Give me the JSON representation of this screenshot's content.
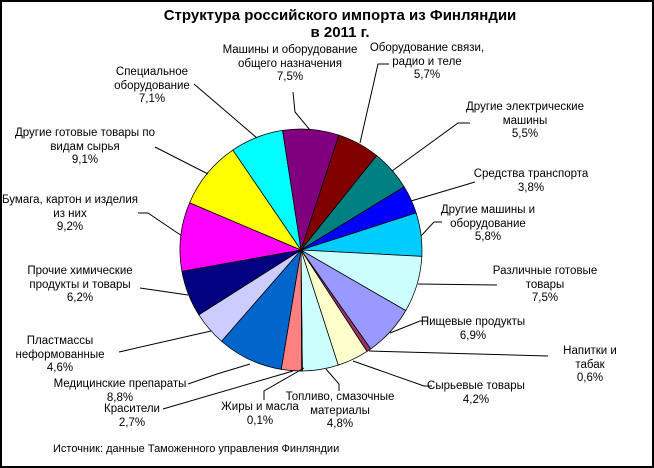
{
  "title": {
    "line1": "Структура российского импорта из Финляндии",
    "line2": "в 2011 г."
  },
  "source_note": "Источник: данные Таможенного управления Финляндии",
  "chart_data": {
    "type": "pie",
    "title": "Структура российского импорта из Финляндии в 2011 г.",
    "units": "%",
    "start_angle_deg": 120,
    "direction": "clockwise",
    "legend": "none",
    "label_format": "name + percent, comma decimal separator",
    "slices": [
      {
        "label": "Пищевые продукты",
        "value": 6.9,
        "color": "#9999FF"
      },
      {
        "label": "Напитки и табак",
        "value": 0.6,
        "color": "#993366"
      },
      {
        "label": "Сырьевые товары",
        "value": 4.2,
        "color": "#FFFFCC"
      },
      {
        "label": "Топливо, смазочные\nматериалы",
        "value": 4.8,
        "color": "#CCFFFF"
      },
      {
        "label": "Жиры и масла",
        "value": 0.1,
        "color": "#660066"
      },
      {
        "label": "Красители",
        "value": 2.7,
        "color": "#FF8080"
      },
      {
        "label": "Медицинские препараты",
        "value": 8.8,
        "color": "#0066CC"
      },
      {
        "label": "Пластмассы\nнеформованные",
        "value": 4.6,
        "color": "#CCCCFF"
      },
      {
        "label": "Прочие химические\nпродукты и товары",
        "value": 6.2,
        "color": "#000080"
      },
      {
        "label": "Бумага, картон и изделия\nиз них",
        "value": 9.2,
        "color": "#FF00FF"
      },
      {
        "label": "Другие готовые товары по\nвидам сырья",
        "value": 9.1,
        "color": "#FFFF00"
      },
      {
        "label": "Специальное\nоборудование",
        "value": 7.1,
        "color": "#00FFFF"
      },
      {
        "label": "Машины и оборудование\nобщего назначения",
        "value": 7.5,
        "color": "#800080"
      },
      {
        "label": "Оборудование связи,\nрадио и теле",
        "value": 5.7,
        "color": "#800000"
      },
      {
        "label": "Другие электрические\nмашины",
        "value": 5.5,
        "color": "#008080"
      },
      {
        "label": "Средства транспорта",
        "value": 3.8,
        "color": "#0000FF"
      },
      {
        "label": "Другие машины и\nоборудование",
        "value": 5.8,
        "color": "#00CCFF"
      },
      {
        "label": "Различные готовые\nтовары",
        "value": 7.5,
        "color": "#CCFFFF"
      }
    ]
  }
}
